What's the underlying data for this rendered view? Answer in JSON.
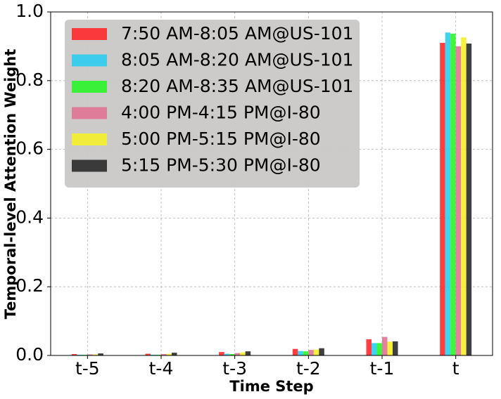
{
  "chart_data": {
    "type": "bar",
    "xlabel": "Time Step",
    "ylabel": "Temporal-level Attention Weight",
    "categories": [
      "t-5",
      "t-4",
      "t-3",
      "t-2",
      "t-1",
      "t"
    ],
    "series": [
      {
        "name": "7:50 AM-8:05 AM@US-101",
        "color": "#ff2a2a",
        "values": [
          0.004,
          0.005,
          0.01,
          0.019,
          0.047,
          0.91
        ]
      },
      {
        "name": "8:05 AM-8:20 AM@US-101",
        "color": "#2dcdf0",
        "values": [
          0.002,
          0.002,
          0.005,
          0.013,
          0.036,
          0.94
        ]
      },
      {
        "name": "8:20 AM-8:35 AM@US-101",
        "color": "#2af52a",
        "values": [
          0.002,
          0.002,
          0.004,
          0.012,
          0.036,
          0.937
        ]
      },
      {
        "name": "4:00 PM-4:15 PM@I-80",
        "color": "#e07393",
        "values": [
          0.003,
          0.004,
          0.007,
          0.016,
          0.054,
          0.9
        ]
      },
      {
        "name": "5:00 PM-5:15 PM@I-80",
        "color": "#f5f02a",
        "values": [
          0.003,
          0.005,
          0.009,
          0.017,
          0.04,
          0.926
        ]
      },
      {
        "name": "5:15 PM-5:30 PM@I-80",
        "color": "#2a2a2a",
        "values": [
          0.006,
          0.008,
          0.012,
          0.021,
          0.041,
          0.908
        ]
      }
    ],
    "ylim": [
      0,
      1
    ],
    "yticks": [
      {
        "value": 0,
        "label": "0.0"
      },
      0.2,
      0.4,
      0.6,
      0.8,
      {
        "value": 1,
        "label": "1.0"
      }
    ],
    "grid": true,
    "legend": "upper-left"
  }
}
